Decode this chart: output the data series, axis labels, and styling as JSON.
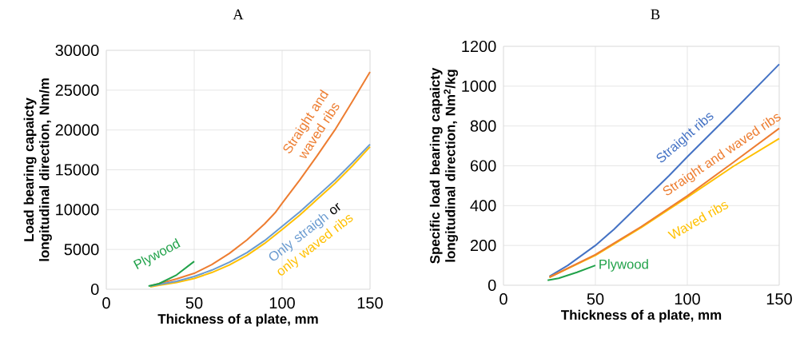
{
  "chart_data": [
    {
      "type": "line",
      "title": "A",
      "xlabel": "Thickness of a plate, mm",
      "ylabel": "Load bearing capaicty longitudinal direction,  Nm/m",
      "xlim": [
        0,
        150
      ],
      "xticks": [
        0,
        50,
        100,
        150
      ],
      "ylim": [
        0,
        30000
      ],
      "yticks": [
        0,
        5000,
        10000,
        15000,
        20000,
        25000,
        30000
      ],
      "grid": true,
      "legend": false,
      "annotations": [
        "or"
      ],
      "series": [
        {
          "name": "Straight and waved ribs",
          "color": "#ed7d31",
          "x": [
            25,
            30,
            40,
            50,
            60,
            70,
            80,
            90,
            96,
            100,
            110,
            120,
            130,
            140,
            150
          ],
          "values": [
            400,
            700,
            1300,
            2000,
            3100,
            4500,
            6200,
            8200,
            9600,
            10800,
            13700,
            16800,
            20000,
            23600,
            27300
          ]
        },
        {
          "name": "only waved ribs",
          "color": "#ffc000",
          "x": [
            25,
            30,
            40,
            50,
            60,
            70,
            80,
            90,
            100,
            110,
            120,
            130,
            140,
            150
          ],
          "values": [
            300,
            500,
            850,
            1350,
            2100,
            3050,
            4250,
            5750,
            7500,
            9300,
            11300,
            13300,
            15500,
            17900
          ]
        },
        {
          "name": "Only straigh",
          "color": "#6a9bd0",
          "x": [
            25,
            30,
            40,
            50,
            60,
            70,
            80,
            90,
            100,
            110,
            120,
            130,
            140,
            150
          ],
          "values": [
            400,
            600,
            1000,
            1600,
            2400,
            3400,
            4600,
            6100,
            7900,
            9700,
            11700,
            13700,
            15900,
            18200
          ]
        },
        {
          "name": "Plywood",
          "color": "#21a24a",
          "x": [
            24,
            30,
            40,
            50
          ],
          "values": [
            400,
            700,
            1800,
            3500
          ]
        }
      ]
    },
    {
      "type": "line",
      "title": "B",
      "xlabel": "Thickness of a plate, mm",
      "ylabel": "Specific load bearing capaicty longitudinal direction, Nm$^{2}$/kg",
      "xlim": [
        0,
        150
      ],
      "xticks": [
        0,
        50,
        100,
        150
      ],
      "ylim": [
        0,
        1200
      ],
      "yticks": [
        0,
        200,
        400,
        600,
        800,
        1000,
        1200
      ],
      "grid": true,
      "legend": false,
      "series": [
        {
          "name": "Straight ribs",
          "color": "#4472c4",
          "x": [
            25,
            35,
            50,
            60,
            75,
            90,
            100,
            125,
            150
          ],
          "values": [
            45,
            100,
            200,
            280,
            415,
            550,
            645,
            875,
            1110
          ]
        },
        {
          "name": "Waved ribs",
          "color": "#ffc000",
          "x": [
            25,
            50,
            75,
            100,
            125,
            150
          ],
          "values": [
            40,
            150,
            290,
            442,
            597,
            737
          ]
        },
        {
          "name": "Straight and waved ribs",
          "color": "#ed7d31",
          "x": [
            25,
            50,
            75,
            100,
            125,
            150
          ],
          "values": [
            40,
            154,
            295,
            449,
            617,
            788
          ]
        },
        {
          "name": "Plywood",
          "color": "#21a24a",
          "x": [
            24,
            30,
            40,
            50
          ],
          "values": [
            25,
            35,
            65,
            100
          ]
        }
      ]
    }
  ]
}
